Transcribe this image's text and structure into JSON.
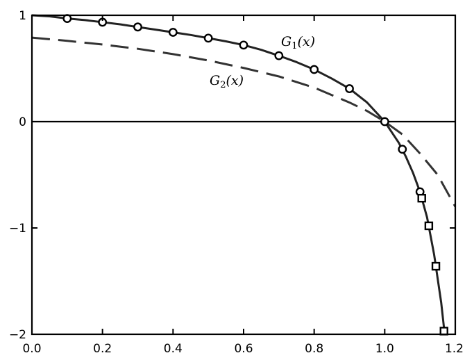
{
  "chart_data": {
    "type": "line",
    "title": "",
    "xlabel": "",
    "ylabel": "",
    "xlim": [
      0.0,
      1.2
    ],
    "ylim": [
      -2,
      1
    ],
    "x_ticks": [
      0.0,
      0.2,
      0.4,
      0.6,
      0.8,
      1.0,
      1.2
    ],
    "x_tick_labels": [
      "0.0",
      "0.2",
      "0.4",
      "0.6",
      "0.8",
      "1.0",
      "1.2"
    ],
    "y_ticks": [
      1,
      0,
      -1,
      -2
    ],
    "y_tick_labels": [
      "1",
      "0",
      "−1",
      "−2"
    ],
    "grid": false,
    "zero_line": true,
    "series": [
      {
        "name": "G1(x)",
        "label_main": "G",
        "label_sub": "1",
        "label_tail": "(x)",
        "style": "solid",
        "color": "#222222",
        "x": [
          0.0,
          0.05,
          0.1,
          0.15,
          0.2,
          0.25,
          0.3,
          0.35,
          0.4,
          0.45,
          0.5,
          0.55,
          0.6,
          0.65,
          0.7,
          0.75,
          0.8,
          0.85,
          0.9,
          0.95,
          1.0,
          1.02,
          1.04,
          1.06,
          1.08,
          1.1,
          1.12,
          1.14,
          1.16,
          1.17
        ],
        "y": [
          1.0,
          0.99,
          0.97,
          0.955,
          0.935,
          0.915,
          0.89,
          0.865,
          0.84,
          0.815,
          0.785,
          0.755,
          0.72,
          0.675,
          0.62,
          0.56,
          0.49,
          0.405,
          0.31,
          0.18,
          0.0,
          -0.1,
          -0.2,
          -0.33,
          -0.48,
          -0.66,
          -0.9,
          -1.25,
          -1.7,
          -2.0
        ]
      },
      {
        "name": "G2(x)",
        "label_main": "G",
        "label_sub": "2",
        "label_tail": "(x)",
        "style": "dashed",
        "color": "#333333",
        "x": [
          0.0,
          0.1,
          0.2,
          0.3,
          0.4,
          0.5,
          0.6,
          0.7,
          0.8,
          0.9,
          0.95,
          1.0,
          1.05,
          1.1,
          1.15,
          1.2
        ],
        "y": [
          0.79,
          0.76,
          0.725,
          0.685,
          0.635,
          0.575,
          0.505,
          0.425,
          0.32,
          0.18,
          0.1,
          0.0,
          -0.12,
          -0.3,
          -0.5,
          -0.8
        ]
      }
    ],
    "markers": [
      {
        "shape": "circle",
        "x": [
          0.1,
          0.2,
          0.3,
          0.4,
          0.5,
          0.6,
          0.7,
          0.8,
          0.9,
          1.0,
          1.05,
          1.1
        ]
      },
      {
        "shape": "square",
        "x": [
          1.105,
          1.125,
          1.145,
          1.168
        ]
      }
    ],
    "marker_values": {
      "circle": [
        0.97,
        0.935,
        0.89,
        0.84,
        0.785,
        0.72,
        0.62,
        0.49,
        0.31,
        0.0,
        -0.26,
        -0.66
      ],
      "square": [
        -0.72,
        -0.98,
        -1.36,
        -1.97
      ]
    }
  }
}
